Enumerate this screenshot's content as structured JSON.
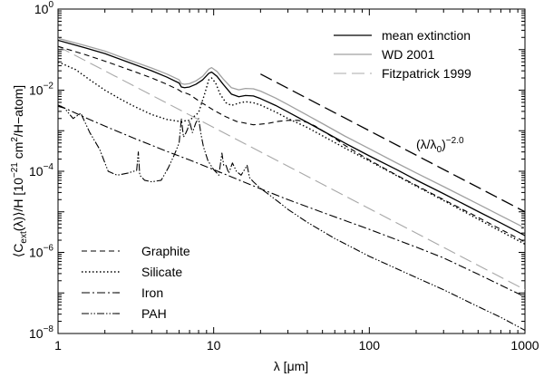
{
  "chart_data": {
    "type": "line",
    "xscale": "log",
    "yscale": "log",
    "xlim": [
      1,
      1000
    ],
    "ylim": [
      1e-08,
      1
    ],
    "xlabel_parts": [
      "λ [μm]"
    ],
    "ylabel_parts": [
      "⟨C",
      "ext",
      "(λ)⟩/H [10",
      "−21",
      " cm",
      "2",
      "/H−atom]"
    ],
    "x_tick_labels": [
      "1",
      "10",
      "100",
      "1000"
    ],
    "y_tick_labels": [
      {
        "base": "10",
        "exp": "−8",
        "value": 1e-08
      },
      {
        "base": "10",
        "exp": "−6",
        "value": 1e-06
      },
      {
        "base": "10",
        "exp": "−4",
        "value": 0.0001
      },
      {
        "base": "10",
        "exp": "−2",
        "value": 0.01
      },
      {
        "base": "10",
        "exp": "0",
        "value": 1
      }
    ],
    "annotation": {
      "text": "(λ/λ",
      "sub": "0",
      "close": ")",
      "sup": "−2.0",
      "at": [
        70,
        0.0015
      ]
    },
    "series": [
      {
        "name": "mean extinction",
        "legend": "top",
        "color": "#000000",
        "dash": "",
        "width": 1.3,
        "x": [
          1,
          1.5,
          2,
          3,
          4,
          5,
          6,
          6.2,
          6.5,
          7,
          7.7,
          8.5,
          9.3,
          9.7,
          10.5,
          11.5,
          13,
          14.5,
          16,
          18,
          20,
          25,
          30,
          40,
          50,
          70,
          100,
          150,
          200,
          300,
          500,
          700,
          1000
        ],
        "y": [
          0.17,
          0.11,
          0.08,
          0.045,
          0.03,
          0.021,
          0.015,
          0.012,
          0.0115,
          0.012,
          0.014,
          0.018,
          0.026,
          0.028,
          0.022,
          0.014,
          0.008,
          0.0069,
          0.0074,
          0.0072,
          0.0062,
          0.0042,
          0.0029,
          0.0016,
          0.001,
          0.00049,
          0.00024,
          0.00011,
          6.1e-05,
          2.8e-05,
          1.02e-05,
          5.3e-06,
          2.6e-06
        ]
      },
      {
        "name": "WD 2001",
        "legend": "top",
        "color": "#a0a0a0",
        "dash": "",
        "width": 1.3,
        "x": [
          1,
          1.5,
          2,
          3,
          4,
          5,
          6,
          6.2,
          6.5,
          7,
          7.7,
          8.5,
          9.3,
          9.7,
          10.5,
          11.5,
          13,
          14.5,
          16,
          18,
          20,
          25,
          30,
          40,
          50,
          70,
          100,
          150,
          200,
          300,
          500,
          700,
          1000
        ],
        "y": [
          0.19,
          0.125,
          0.092,
          0.052,
          0.035,
          0.025,
          0.018,
          0.0145,
          0.014,
          0.0145,
          0.017,
          0.022,
          0.033,
          0.036,
          0.029,
          0.019,
          0.0115,
          0.0102,
          0.011,
          0.0108,
          0.0095,
          0.0064,
          0.0044,
          0.0024,
          0.0015,
          0.00073,
          0.00036,
          0.00016,
          9.1e-05,
          4.2e-05,
          1.55e-05,
          8e-06,
          4e-06
        ]
      },
      {
        "name": "Fitzpatrick 1999",
        "legend": "top",
        "color": "#a8a8a8",
        "dash": "14 6",
        "width": 1.1,
        "x": [
          1,
          1000
        ],
        "y": [
          0.12,
          1.2e-07
        ]
      },
      {
        "name": "power-law reference",
        "legend": "",
        "color": "#000000",
        "dash": "14 6",
        "width": 1.3,
        "x": [
          20,
          1000
        ],
        "y": [
          0.025,
          1e-05
        ]
      },
      {
        "name": "Graphite",
        "legend": "bottom",
        "color": "#000000",
        "dash": "6 4",
        "width": 1.1,
        "x": [
          1,
          1.5,
          2,
          3,
          4,
          5,
          6,
          6.3,
          6.6,
          7,
          8,
          10,
          12,
          14,
          18,
          22,
          26,
          30,
          35,
          40,
          45,
          50,
          60,
          70,
          100,
          150,
          200,
          300,
          500,
          700,
          1000
        ],
        "y": [
          0.12,
          0.075,
          0.052,
          0.03,
          0.02,
          0.014,
          0.01,
          0.0088,
          0.0085,
          0.0078,
          0.0055,
          0.0032,
          0.0022,
          0.0017,
          0.0014,
          0.0015,
          0.0017,
          0.0018,
          0.0018,
          0.0016,
          0.0013,
          0.001,
          0.00065,
          0.00043,
          0.00019,
          8e-05,
          4.5e-05,
          2e-05,
          7.3e-06,
          3.7e-06,
          1.8e-06
        ]
      },
      {
        "name": "Silicate",
        "legend": "bottom",
        "color": "#000000",
        "dash": "1.5 2.5",
        "width": 1.4,
        "x": [
          1,
          1.3,
          1.6,
          2,
          2.5,
          3,
          4,
          5,
          6,
          7,
          8,
          8.7,
          9.3,
          9.7,
          10.3,
          11,
          12,
          13,
          14.5,
          16,
          18,
          20,
          25,
          30,
          40,
          50,
          70,
          100,
          150,
          200,
          300,
          500,
          700,
          1000
        ],
        "y": [
          0.05,
          0.032,
          0.018,
          0.01,
          0.0061,
          0.0042,
          0.0025,
          0.0019,
          0.0017,
          0.0018,
          0.0028,
          0.0075,
          0.018,
          0.02,
          0.015,
          0.008,
          0.0049,
          0.0042,
          0.0048,
          0.0052,
          0.0049,
          0.0043,
          0.0029,
          0.002,
          0.0012,
          0.00075,
          0.00037,
          0.00018,
          7.8e-05,
          4.3e-05,
          1.9e-05,
          6.6e-06,
          3.3e-06,
          1.6e-06
        ]
      },
      {
        "name": "Iron",
        "legend": "bottom",
        "color": "#000000",
        "dash": "9 3 2 3",
        "width": 1.1,
        "x": [
          1,
          1.5,
          2,
          3,
          5,
          7,
          10,
          20,
          30,
          50,
          100,
          200,
          300,
          500,
          700,
          1000
        ],
        "y": [
          0.0043,
          0.0021,
          0.0013,
          0.00068,
          0.00031,
          0.00019,
          0.00011,
          3.7e-05,
          2e-05,
          9.7e-06,
          3.7e-06,
          1.35e-06,
          7.3e-07,
          2.9e-07,
          1.55e-07,
          8e-08
        ]
      },
      {
        "name": "PAH",
        "legend": "bottom",
        "color": "#000000",
        "dash": "8 2 1.5 2 1.5 2",
        "width": 1.1,
        "x": [
          1,
          1.1,
          1.25,
          1.4,
          1.6,
          1.85,
          2.1,
          2.4,
          2.8,
          3.2,
          3.28,
          3.35,
          3.6,
          4,
          4.6,
          5.1,
          5.6,
          6.0,
          6.2,
          6.4,
          6.6,
          6.8,
          7.0,
          7.3,
          7.7,
          8.0,
          8.3,
          8.6,
          9.2,
          10,
          10.8,
          11.3,
          11.6,
          12,
          12.5,
          13.2,
          14,
          15,
          16.4,
          17.0,
          18,
          20,
          25,
          30,
          40,
          60,
          100,
          200,
          300,
          500,
          700,
          1000
        ],
        "y": [
          0.004,
          0.0036,
          0.002,
          0.0027,
          0.0009,
          0.00035,
          0.0001,
          8e-05,
          9e-05,
          0.000105,
          0.0003,
          8e-05,
          6e-05,
          5.5e-05,
          6e-05,
          0.00012,
          0.00026,
          0.0005,
          0.002,
          0.0007,
          0.00085,
          0.0011,
          0.0017,
          0.0009,
          0.0016,
          0.002,
          0.0008,
          0.0004,
          0.00018,
          0.00011,
          8e-05,
          0.00028,
          0.00014,
          0.00014,
          9e-05,
          0.00016,
          0.0001,
          8e-05,
          0.00014,
          7e-05,
          5.5e-05,
          3.8e-05,
          2e-05,
          1.15e-05,
          5.5e-06,
          2.2e-06,
          8e-07,
          2.4e-07,
          1.2e-07,
          4.6e-08,
          2.5e-08,
          1.2e-08
        ]
      }
    ]
  }
}
